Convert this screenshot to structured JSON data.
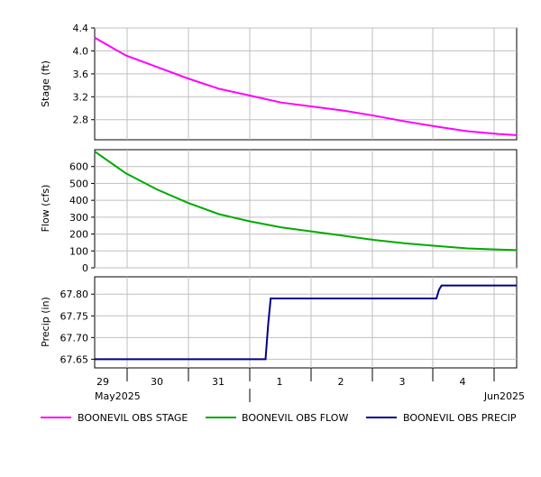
{
  "chart_data": {
    "type": "line",
    "x_axis": {
      "day_labels": [
        "29",
        "30",
        "31",
        "1",
        "2",
        "3",
        "4"
      ],
      "month_labels": [
        "May2025",
        "Jun2025"
      ],
      "range": [
        "2025-05-29 00:00",
        "2025-06-04 19:00"
      ]
    },
    "panels": [
      {
        "ylabel": "Stage (ft)",
        "ylim": [
          2.45,
          4.4
        ],
        "ticks": [
          "4.4",
          "4.0",
          "3.6",
          "3.2",
          "2.8"
        ],
        "tick_values": [
          4.4,
          4.0,
          3.6,
          3.2,
          2.8
        ],
        "series": [
          {
            "name": "BOONEVIL OBS STAGE",
            "color": "#ff00ff",
            "points": [
              [
                "2025-05-29 00:00",
                4.23
              ],
              [
                "2025-05-29 12:00",
                3.92
              ],
              [
                "2025-05-30 00:00",
                3.72
              ],
              [
                "2025-05-30 12:00",
                3.52
              ],
              [
                "2025-05-31 00:00",
                3.34
              ],
              [
                "2025-05-31 12:00",
                3.22
              ],
              [
                "2025-06-01 00:00",
                3.1
              ],
              [
                "2025-06-01 12:00",
                3.03
              ],
              [
                "2025-06-02 00:00",
                2.96
              ],
              [
                "2025-06-02 12:00",
                2.87
              ],
              [
                "2025-06-03 00:00",
                2.77
              ],
              [
                "2025-06-03 12:00",
                2.68
              ],
              [
                "2025-06-04 00:00",
                2.6
              ],
              [
                "2025-06-04 12:00",
                2.55
              ],
              [
                "2025-06-04 19:00",
                2.53
              ]
            ]
          }
        ]
      },
      {
        "ylabel": "Flow (cfs)",
        "ylim": [
          0,
          700
        ],
        "ticks": [
          "600",
          "500",
          "400",
          "300",
          "200",
          "100",
          "0"
        ],
        "tick_values": [
          600,
          500,
          400,
          300,
          200,
          100,
          0
        ],
        "series": [
          {
            "name": "BOONEVIL OBS FLOW",
            "color": "#00aa00",
            "points": [
              [
                "2025-05-29 00:00",
                690
              ],
              [
                "2025-05-29 12:00",
                560
              ],
              [
                "2025-05-30 00:00",
                465
              ],
              [
                "2025-05-30 12:00",
                385
              ],
              [
                "2025-05-31 00:00",
                318
              ],
              [
                "2025-05-31 12:00",
                275
              ],
              [
                "2025-06-01 00:00",
                240
              ],
              [
                "2025-06-01 12:00",
                215
              ],
              [
                "2025-06-02 00:00",
                190
              ],
              [
                "2025-06-02 12:00",
                165
              ],
              [
                "2025-06-03 00:00",
                145
              ],
              [
                "2025-06-03 12:00",
                130
              ],
              [
                "2025-06-04 00:00",
                115
              ],
              [
                "2025-06-04 12:00",
                108
              ],
              [
                "2025-06-04 19:00",
                105
              ]
            ]
          }
        ]
      },
      {
        "ylabel": "Precip (in)",
        "ylim": [
          67.63,
          67.84
        ],
        "ticks": [
          "67.80",
          "67.75",
          "67.70",
          "67.65"
        ],
        "tick_values": [
          67.8,
          67.75,
          67.7,
          67.65
        ],
        "series": [
          {
            "name": "BOONEVIL OBS PRECIP",
            "color": "#00008b",
            "points": [
              [
                "2025-05-29 00:00",
                67.65
              ],
              [
                "2025-05-31 18:00",
                67.65
              ],
              [
                "2025-05-31 19:00",
                67.73
              ],
              [
                "2025-05-31 20:00",
                67.79
              ],
              [
                "2025-06-03 12:00",
                67.79
              ],
              [
                "2025-06-03 13:00",
                67.81
              ],
              [
                "2025-06-03 14:00",
                67.82
              ],
              [
                "2025-06-04 19:00",
                67.82
              ]
            ]
          }
        ]
      }
    ],
    "legend": {
      "position": "bottom",
      "items": [
        {
          "label": "BOONEVIL OBS STAGE",
          "color": "#ff00ff"
        },
        {
          "label": "BOONEVIL OBS FLOW",
          "color": "#00aa00"
        },
        {
          "label": "BOONEVIL OBS PRECIP",
          "color": "#00008b"
        }
      ]
    },
    "grid": true
  }
}
